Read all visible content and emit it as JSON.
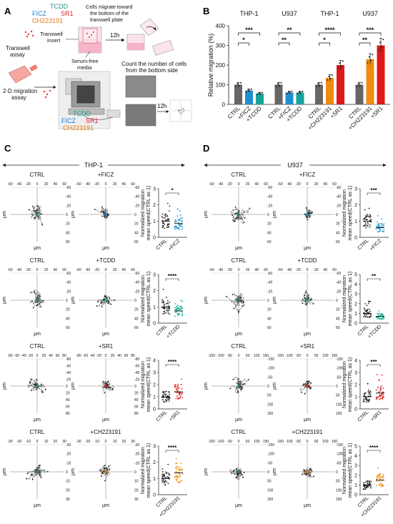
{
  "panel_letters": {
    "a": "A",
    "b": "B",
    "c": "C",
    "d": "D"
  },
  "panel_a": {
    "compounds": {
      "tcdd": "TCDD",
      "ficz": "FICZ",
      "sr1": "SR1",
      "ch": "CH223191"
    },
    "compound_colors": {
      "tcdd": "#1a9a8a",
      "ficz": "#1a7fd0",
      "sr1": "#e02020",
      "ch": "#e07a10"
    },
    "caption_top": [
      "Cells migrate toward",
      "the bottom of the",
      "transwell plate"
    ],
    "transwell_insert": [
      "Transwell",
      "insert"
    ],
    "serum_free": [
      "Serum-free",
      "media"
    ],
    "transwell_assay": [
      "Transwell",
      "assay"
    ],
    "time": "12h",
    "two_d_assay": [
      "2-D migration",
      "assay"
    ],
    "count_caption": [
      "Count the number of cells",
      "from the bottom side"
    ]
  },
  "chart_data": [
    {
      "type": "bar",
      "panel": "B",
      "ylabel": "Relative migration (%)",
      "ylim": [
        0,
        400
      ],
      "yticks": [
        0,
        100,
        200,
        300,
        400
      ],
      "groups": [
        {
          "title": "THP-1",
          "categories": [
            "CTRL",
            "+FICZ",
            "+TCDD"
          ],
          "values": [
            100,
            70,
            55
          ],
          "colors": [
            "#666666",
            "#1f8fcf",
            "#17a39a"
          ],
          "sig": [
            "*",
            "***"
          ]
        },
        {
          "title": "U937",
          "categories": [
            "CTRL",
            "+FICZ",
            "+TCDD"
          ],
          "values": [
            100,
            60,
            60
          ],
          "colors": [
            "#666666",
            "#1f8fcf",
            "#17a39a"
          ],
          "sig": [
            "**",
            "**"
          ]
        },
        {
          "title": "THP-1",
          "categories": [
            "CTRL",
            "+CH223191",
            "+SR1"
          ],
          "values": [
            100,
            135,
            200
          ],
          "colors": [
            "#666666",
            "#f08a10",
            "#e01818"
          ],
          "sig": [
            "*",
            "****"
          ]
        },
        {
          "title": "U937",
          "categories": [
            "CTRL",
            "+CH223191",
            "+SR1"
          ],
          "values": [
            100,
            230,
            300
          ],
          "colors": [
            "#666666",
            "#f08a10",
            "#e01818"
          ],
          "sig": [
            "**",
            "***"
          ]
        }
      ]
    },
    {
      "type": "scatter",
      "panel": "C",
      "title": "THP-1",
      "rows": [
        {
          "ctrl_label": "CTRL",
          "treat_label": "+FICZ",
          "treat_color": "#1f8fcf",
          "ctrl_ticks": [
            "-60",
            "-40",
            "-20",
            "0",
            "20",
            "40",
            "60"
          ],
          "treat_ticks": [
            "-60",
            "-40",
            "-20",
            "0",
            "20",
            "40",
            "60"
          ],
          "ylim": [
            0,
            3
          ],
          "yticks": [
            "0",
            "1",
            "2",
            "3"
          ],
          "sig": "*",
          "ctrl_mean": 1.0,
          "treat_mean": 0.85
        },
        {
          "ctrl_label": "CTRL",
          "treat_label": "+TCDD",
          "treat_color": "#17b09a",
          "ctrl_ticks": [
            "-60",
            "-40",
            "-20",
            "0",
            "20",
            "40",
            "60"
          ],
          "treat_ticks": [
            "-60",
            "-40",
            "-20",
            "0",
            "20",
            "40",
            "60"
          ],
          "ylim": [
            0,
            3
          ],
          "yticks": [
            "0",
            "1",
            "2",
            "3"
          ],
          "sig": "****",
          "ctrl_mean": 1.0,
          "treat_mean": 0.75
        },
        {
          "ctrl_label": "CTRL",
          "treat_label": "+SR1",
          "treat_color": "#e02020",
          "ctrl_ticks": [
            "-80",
            "-60",
            "-40",
            "-20",
            "0",
            "20",
            "40",
            "60",
            "80"
          ],
          "treat_ticks": [
            "-80",
            "-60",
            "-40",
            "-20",
            "0",
            "20",
            "40",
            "60",
            "80"
          ],
          "ylim": [
            0,
            4
          ],
          "yticks": [
            "0",
            "1",
            "2",
            "3",
            "4"
          ],
          "sig": "****",
          "ctrl_mean": 1.0,
          "treat_mean": 1.4
        },
        {
          "ctrl_label": "CTRL",
          "treat_label": "+CH223191",
          "treat_color": "#f09010",
          "ctrl_ticks": [
            "-30",
            "-20",
            "-10",
            "0",
            "10",
            "20",
            "30"
          ],
          "treat_ticks": [
            "-30",
            "-20",
            "-10",
            "0",
            "10",
            "20",
            "30"
          ],
          "ylim": [
            0,
            3
          ],
          "yticks": [
            "0",
            "1",
            "2",
            "3"
          ],
          "sig": "****",
          "ctrl_mean": 1.0,
          "treat_mean": 1.35
        }
      ],
      "axis_unit": "μm",
      "ylabel": [
        "Normalized migration",
        "mean speed(CTRL as 1)"
      ]
    },
    {
      "type": "scatter",
      "panel": "D",
      "title": "U937",
      "rows": [
        {
          "ctrl_label": "CTRL",
          "treat_label": "+FICZ",
          "treat_color": "#1f9fd0",
          "ctrl_ticks": [
            "-60",
            "-40",
            "-20",
            "0",
            "20",
            "40",
            "60"
          ],
          "treat_ticks": [
            "-60",
            "-40",
            "-20",
            "0",
            "20",
            "40",
            "60"
          ],
          "ylim": [
            0,
            3
          ],
          "yticks": [
            "0",
            "1",
            "2",
            "3"
          ],
          "sig": "***",
          "ctrl_mean": 1.0,
          "treat_mean": 0.6
        },
        {
          "ctrl_label": "CTRL",
          "treat_label": "+TCDD",
          "treat_color": "#17b09a",
          "ctrl_ticks": [
            "-60",
            "-40",
            "-20",
            "0",
            "20",
            "40",
            "60"
          ],
          "treat_ticks": [
            "-60",
            "-40",
            "-20",
            "0",
            "20",
            "40",
            "60"
          ],
          "ylim": [
            0,
            5
          ],
          "yticks": [
            "0",
            "1",
            "2",
            "3",
            "4",
            "5"
          ],
          "sig": "**",
          "ctrl_mean": 1.0,
          "treat_mean": 0.7
        },
        {
          "ctrl_label": "CTRL",
          "treat_label": "+SR1",
          "treat_color": "#e02020",
          "ctrl_ticks": [
            "-150",
            "-100",
            "-50",
            "0",
            "50",
            "100",
            "150"
          ],
          "treat_ticks": [
            "-150",
            "-100",
            "-50",
            "0",
            "50",
            "100",
            "150"
          ],
          "ylim": [
            0,
            4
          ],
          "yticks": [
            "0",
            "1",
            "2",
            "3",
            "4"
          ],
          "sig": "***",
          "ctrl_mean": 1.0,
          "treat_mean": 1.3
        },
        {
          "ctrl_label": "CTRL",
          "treat_label": "+CH223191",
          "treat_color": "#f09010",
          "ctrl_ticks": [
            "-150",
            "-100",
            "-50",
            "0",
            "50",
            "100",
            "150"
          ],
          "treat_ticks": [
            "-150",
            "-100",
            "-50",
            "0",
            "50",
            "100",
            "150"
          ],
          "ylim": [
            0,
            5
          ],
          "yticks": [
            "0",
            "1",
            "2",
            "3",
            "4",
            "5"
          ],
          "sig": "****",
          "ctrl_mean": 1.0,
          "treat_mean": 1.5
        }
      ],
      "axis_unit": "μm",
      "ylabel": [
        "Normalized migration",
        "mean speed(CTRL as 1)"
      ]
    }
  ]
}
